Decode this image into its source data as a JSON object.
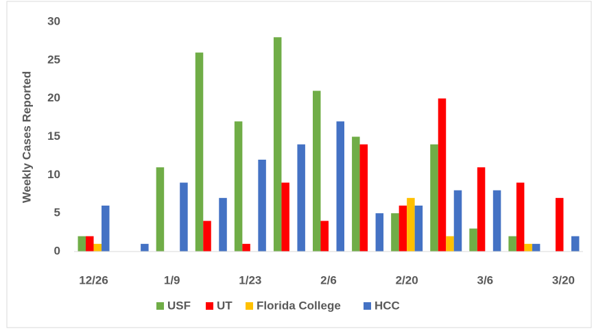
{
  "chart_data": {
    "type": "bar",
    "y_label": "Weekly Cases Reported",
    "categories": [
      "12/26",
      null,
      "1/9",
      null,
      "1/23",
      null,
      "2/6",
      null,
      "2/20",
      null,
      "3/6",
      null,
      "3/20"
    ],
    "series": [
      {
        "name": "USF",
        "color": "#70ad47",
        "values": [
          2,
          0,
          11,
          26,
          17,
          28,
          21,
          15,
          5,
          14,
          3,
          2,
          0
        ]
      },
      {
        "name": "UT",
        "color": "#ff0000",
        "values": [
          2,
          0,
          0,
          4,
          1,
          9,
          4,
          14,
          6,
          20,
          11,
          9,
          7
        ]
      },
      {
        "name": "Florida College",
        "color": "#ffc000",
        "values": [
          1,
          0,
          0,
          0,
          0,
          0,
          0,
          0,
          7,
          2,
          0,
          1,
          0
        ]
      },
      {
        "name": "HCC",
        "color": "#4472c4",
        "values": [
          6,
          1,
          9,
          7,
          12,
          14,
          17,
          5,
          6,
          8,
          8,
          1,
          2
        ]
      }
    ],
    "ylim": [
      0,
      30
    ],
    "yticks": [
      0,
      5,
      10,
      15,
      20,
      25,
      30
    ],
    "grid": false,
    "legend": "bottom"
  }
}
